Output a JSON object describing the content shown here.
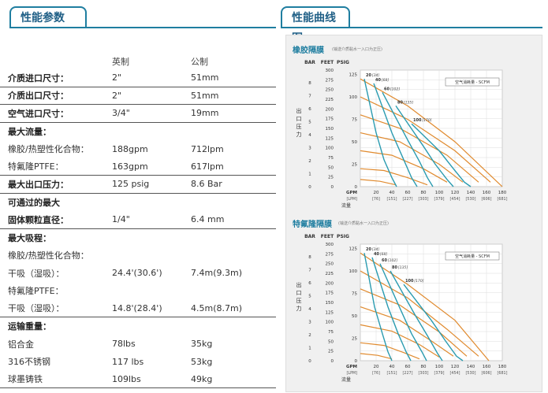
{
  "header": {
    "left_tab": "性能参数",
    "right_tab": "性能曲线图"
  },
  "specs": {
    "col_imperial": "英制",
    "col_metric": "公制",
    "rows": [
      {
        "label": "介质进口尺寸：",
        "imperial": "2\"",
        "metric": "51mm",
        "bold": true,
        "sep": true
      },
      {
        "label": "介质出口尺寸：",
        "imperial": "2\"",
        "metric": "51mm",
        "bold": true,
        "sep": true
      },
      {
        "label": "空气进口尺寸：",
        "imperial": "3/4\"",
        "metric": "19mm",
        "bold": true,
        "sep": true
      },
      {
        "label": "最大流量：",
        "imperial": "",
        "metric": "",
        "bold": true,
        "sep": false
      },
      {
        "label": "橡胶/热塑性化合物：",
        "imperial": "188gpm",
        "metric": "712lpm",
        "bold": false,
        "sep": false
      },
      {
        "label": "特氟隆PTFE：",
        "imperial": "163gpm",
        "metric": "617lpm",
        "bold": false,
        "sep": true
      },
      {
        "label": "最大出口压力：",
        "imperial": "125 psig",
        "metric": "8.6 Bar",
        "bold": true,
        "sep": true
      },
      {
        "label": "可通过的最大",
        "imperial": "",
        "metric": "",
        "bold": true,
        "sep": false
      },
      {
        "label": "固体颗粒直径：",
        "imperial": "1/4\"",
        "metric": "6.4 mm",
        "bold": true,
        "sep": true
      },
      {
        "label": "最大吸程：",
        "imperial": "",
        "metric": "",
        "bold": true,
        "sep": false
      },
      {
        "label": "橡胶/热塑性化合物：",
        "imperial": "",
        "metric": "",
        "bold": false,
        "sep": false
      },
      {
        "label": "干吸（湿吸）：",
        "imperial": "24.4'(30.6')",
        "metric": "7.4m(9.3m)",
        "bold": false,
        "sep": false
      },
      {
        "label": "特氟隆PTFE：",
        "imperial": "",
        "metric": "",
        "bold": false,
        "sep": false
      },
      {
        "label": "干吸（湿吸）：",
        "imperial": "14.8'(28.4')",
        "metric": "4.5m(8.7m)",
        "bold": false,
        "sep": true
      },
      {
        "label": "运输重量：",
        "imperial": "",
        "metric": "",
        "bold": true,
        "sep": false
      },
      {
        "label": "铝合金",
        "imperial": "78lbs",
        "metric": "35kg",
        "bold": false,
        "sep": false
      },
      {
        "label": "316不锈钢",
        "imperial": "117 lbs",
        "metric": "53kg",
        "bold": false,
        "sep": false
      },
      {
        "label": "球墨铸铁",
        "imperial": "109lbs",
        "metric": "49kg",
        "bold": false,
        "sep": true
      }
    ]
  },
  "chart_data": [
    {
      "type": "line",
      "title": "橡胶隔膜",
      "note": "(输送介质黏水一入口为正压)",
      "legend": "空气消耗量 - SCFM",
      "axis_headers": [
        "BAR",
        "FEET",
        "PSIG"
      ],
      "y_label": "出口压力",
      "x_label": "流量",
      "x_units": [
        "GPM",
        "[LPM]"
      ],
      "x_ticks": [
        0,
        20,
        40,
        60,
        80,
        100,
        120,
        140,
        160,
        180
      ],
      "x_ticks_lpm": [
        "",
        "[76]",
        "[151]",
        "[227]",
        "[303]",
        "[379]",
        "[454]",
        "[530]",
        "[606]",
        "[681]"
      ],
      "psig_ticks": [
        0,
        25,
        50,
        75,
        100,
        125
      ],
      "feet_ticks": [
        0,
        25,
        50,
        75,
        100,
        125,
        150,
        175,
        200,
        225,
        250,
        275,
        300
      ],
      "bar_ticks": [
        0,
        1,
        2,
        3,
        4,
        5,
        6,
        7,
        8
      ],
      "ylim": [
        0,
        300
      ],
      "xlim": [
        0,
        180
      ],
      "colors": {
        "air": "#2a9bb0",
        "pressure": "#e08a2e"
      },
      "air_curves": [
        {
          "label": "20",
          "label2": "[34]",
          "points": [
            [
              5,
              120
            ],
            [
              20,
              60
            ],
            [
              30,
              30
            ],
            [
              40,
              10
            ],
            [
              46,
              0
            ]
          ]
        },
        {
          "label": "40",
          "label2": "[68]",
          "points": [
            [
              17,
              115
            ],
            [
              40,
              60
            ],
            [
              55,
              30
            ],
            [
              65,
              10
            ],
            [
              72,
              0
            ]
          ]
        },
        {
          "label": "60",
          "label2": "[102]",
          "points": [
            [
              28,
              105
            ],
            [
              60,
              52
            ],
            [
              75,
              28
            ],
            [
              85,
              10
            ],
            [
              92,
              0
            ]
          ]
        },
        {
          "label": "80",
          "label2": "[135]",
          "points": [
            [
              45,
              90
            ],
            [
              80,
              45
            ],
            [
              95,
              25
            ],
            [
              110,
              8
            ],
            [
              118,
              0
            ]
          ]
        },
        {
          "label": "100",
          "label2": "[170]",
          "points": [
            [
              65,
              70
            ],
            [
              100,
              40
            ],
            [
              118,
              20
            ],
            [
              132,
              5
            ],
            [
              140,
              0
            ]
          ]
        }
      ],
      "pressure_curves": [
        {
          "points": [
            [
              0,
              120
            ],
            [
              60,
              90
            ],
            [
              120,
              50
            ],
            [
              180,
              0
            ]
          ]
        },
        {
          "points": [
            [
              0,
              100
            ],
            [
              60,
              75
            ],
            [
              120,
              40
            ],
            [
              165,
              5
            ]
          ]
        },
        {
          "points": [
            [
              0,
              80
            ],
            [
              50,
              65
            ],
            [
              110,
              35
            ],
            [
              150,
              5
            ]
          ]
        },
        {
          "points": [
            [
              0,
              60
            ],
            [
              50,
              50
            ],
            [
              100,
              25
            ],
            [
              130,
              5
            ]
          ]
        },
        {
          "points": [
            [
              0,
              40
            ],
            [
              40,
              35
            ],
            [
              80,
              20
            ],
            [
              110,
              5
            ]
          ]
        },
        {
          "points": [
            [
              0,
              20
            ],
            [
              30,
              18
            ],
            [
              60,
              10
            ],
            [
              85,
              2
            ]
          ]
        },
        {
          "points": [
            [
              0,
              8
            ],
            [
              25,
              6
            ],
            [
              45,
              2
            ]
          ]
        }
      ]
    },
    {
      "type": "line",
      "title": "特氟隆隔膜",
      "note": "(输送介质黏水一入口为正压)",
      "legend": "空气消耗量 - SCFM",
      "axis_headers": [
        "BAR",
        "FEET",
        "PSIG"
      ],
      "y_label": "出口压力",
      "x_label": "流量",
      "x_units": [
        "GPM",
        "[LPM]"
      ],
      "x_ticks": [
        0,
        20,
        40,
        60,
        80,
        100,
        120,
        140,
        160,
        180
      ],
      "x_ticks_lpm": [
        "",
        "[76]",
        "[151]",
        "[227]",
        "[303]",
        "[379]",
        "[454]",
        "[530]",
        "[606]",
        "[681]"
      ],
      "psig_ticks": [
        0,
        25,
        50,
        75,
        100,
        125
      ],
      "feet_ticks": [
        0,
        25,
        50,
        75,
        100,
        125,
        150,
        175,
        200,
        225,
        250,
        275,
        300
      ],
      "bar_ticks": [
        0,
        1,
        2,
        3,
        4,
        5,
        6,
        7,
        8
      ],
      "ylim": [
        0,
        300
      ],
      "xlim": [
        0,
        180
      ],
      "colors": {
        "air": "#2a9bb0",
        "pressure": "#e08a2e"
      },
      "air_curves": [
        {
          "label": "20",
          "label2": "[34]",
          "points": [
            [
              5,
              120
            ],
            [
              18,
              60
            ],
            [
              28,
              30
            ],
            [
              35,
              10
            ],
            [
              40,
              0
            ]
          ]
        },
        {
          "label": "40",
          "label2": "[68]",
          "points": [
            [
              15,
              115
            ],
            [
              35,
              60
            ],
            [
              48,
              30
            ],
            [
              58,
              10
            ],
            [
              64,
              0
            ]
          ]
        },
        {
          "label": "60",
          "label2": "[102]",
          "points": [
            [
              25,
              108
            ],
            [
              52,
              55
            ],
            [
              65,
              30
            ],
            [
              78,
              10
            ],
            [
              84,
              0
            ]
          ]
        },
        {
          "label": "80",
          "label2": "[135]",
          "points": [
            [
              38,
              100
            ],
            [
              70,
              50
            ],
            [
              85,
              28
            ],
            [
              98,
              8
            ],
            [
              104,
              0
            ]
          ]
        },
        {
          "label": "100",
          "label2": "[170]",
          "points": [
            [
              55,
              85
            ],
            [
              90,
              45
            ],
            [
              108,
              22
            ],
            [
              122,
              5
            ],
            [
              130,
              0
            ]
          ]
        }
      ],
      "pressure_curves": [
        {
          "points": [
            [
              0,
              120
            ],
            [
              60,
              85
            ],
            [
              120,
              45
            ],
            [
              163,
              0
            ]
          ]
        },
        {
          "points": [
            [
              0,
              100
            ],
            [
              60,
              70
            ],
            [
              110,
              35
            ],
            [
              150,
              5
            ]
          ]
        },
        {
          "points": [
            [
              0,
              80
            ],
            [
              50,
              62
            ],
            [
              100,
              32
            ],
            [
              135,
              5
            ]
          ]
        },
        {
          "points": [
            [
              0,
              60
            ],
            [
              50,
              45
            ],
            [
              90,
              22
            ],
            [
              118,
              5
            ]
          ]
        },
        {
          "points": [
            [
              0,
              40
            ],
            [
              40,
              33
            ],
            [
              75,
              18
            ],
            [
              100,
              4
            ]
          ]
        },
        {
          "points": [
            [
              0,
              20
            ],
            [
              30,
              17
            ],
            [
              55,
              9
            ],
            [
              75,
              2
            ]
          ]
        },
        {
          "points": [
            [
              0,
              8
            ],
            [
              22,
              6
            ],
            [
              40,
              2
            ]
          ]
        }
      ]
    }
  ]
}
